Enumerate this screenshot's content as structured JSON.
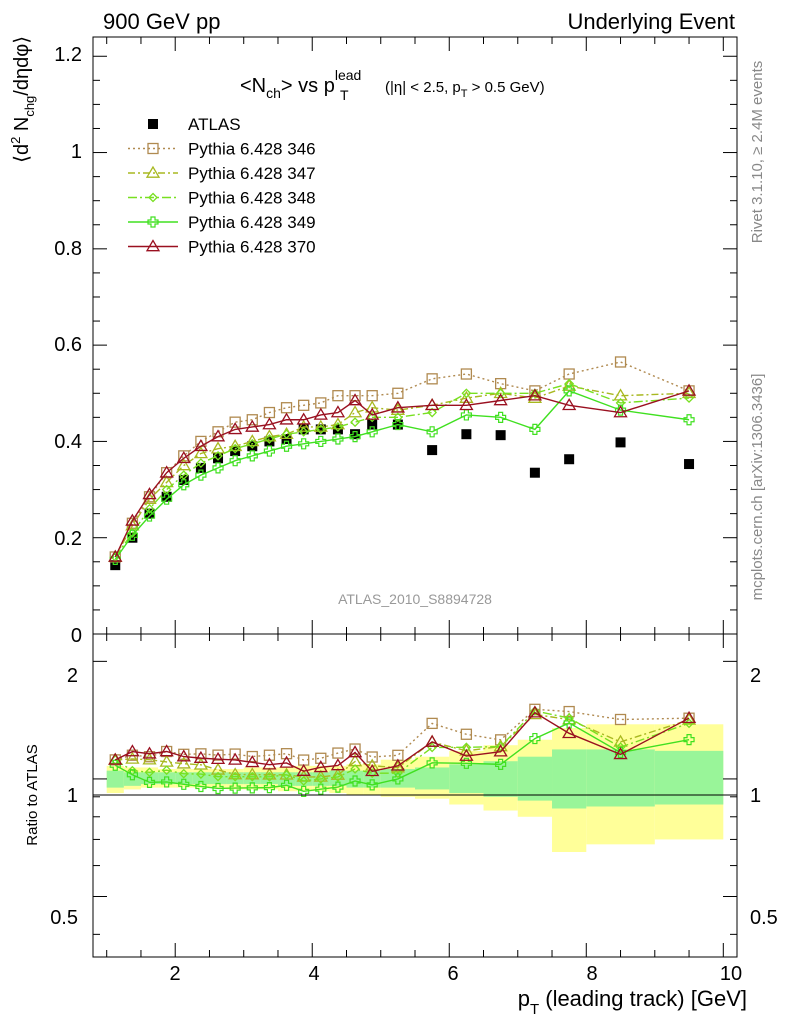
{
  "header": {
    "left": "900 GeV pp",
    "right": "Underlying Event"
  },
  "side_labels": {
    "rivet": "Rivet 3.1.10, ≥ 2.4M events",
    "mcplots": "mcplots.cern.ch [arXiv:1306.3436]"
  },
  "watermark": "ATLAS_2010_S8894728",
  "chart_data": {
    "type": "scatter",
    "title": "<N_ch> vs p_T^lead (|η| < 2.5, p_T > 0.5 GeV)",
    "title_parts": {
      "n": "<N",
      "ch_sub": "ch",
      "vs": "> vs p",
      "lead_sup": "lead",
      "t_sub": "T",
      "cut_a": "(|η| < 2.5, p",
      "cut_t_sub": "T",
      "cut_b": " > 0.5 GeV)"
    },
    "ylabel": "⟨d² N_chg/dηdφ⟩",
    "ylabel_parts": {
      "a": "⟨d",
      "sup": "2",
      "b": " N",
      "sub": "chg",
      "c": "/dηdφ⟩"
    },
    "xlabel": "p_T (leading track) [GeV]",
    "xlabel_parts": {
      "p": "p",
      "sub": "T",
      "rest": " (leading track) [GeV]"
    },
    "ratio_ylabel": "Ratio to ATLAS",
    "xlim": [
      0.8,
      10.2
    ],
    "ylim": [
      0,
      1.24
    ],
    "ratio_ylim": [
      0.35,
      2.35
    ],
    "x_ticks": [
      "2",
      "4",
      "6",
      "8",
      "10"
    ],
    "y_ticks": [
      "0",
      "0.2",
      "0.4",
      "0.6",
      "0.8",
      "1",
      "1.2"
    ],
    "ratio_ticks": [
      "0.5",
      "1",
      "2"
    ],
    "x": [
      1.125,
      1.375,
      1.625,
      1.875,
      2.125,
      2.375,
      2.625,
      2.875,
      3.125,
      3.375,
      3.625,
      3.875,
      4.125,
      4.375,
      4.625,
      4.875,
      5.25,
      5.75,
      6.25,
      6.75,
      7.25,
      7.75,
      8.5,
      9.5
    ],
    "series": [
      {
        "name": "ATLAS",
        "style": "data",
        "values": [
          0.143,
          0.2,
          0.25,
          0.285,
          0.32,
          0.345,
          0.365,
          0.38,
          0.39,
          0.4,
          0.405,
          0.425,
          0.425,
          0.425,
          0.415,
          0.435,
          0.435,
          0.382,
          0.415,
          0.413,
          0.335,
          0.363,
          0.398,
          0.353
        ],
        "color": "#000000"
      },
      {
        "name": "Pythia 6.428 346",
        "style": "dotted-square",
        "values": [
          0.16,
          0.23,
          0.285,
          0.335,
          0.37,
          0.4,
          0.42,
          0.44,
          0.445,
          0.46,
          0.47,
          0.475,
          0.48,
          0.495,
          0.495,
          0.495,
          0.5,
          0.53,
          0.54,
          0.52,
          0.505,
          0.54,
          0.565,
          0.505
        ],
        "color": "#b08a50"
      },
      {
        "name": "Pythia 6.428 347",
        "style": "dashdot-triangle",
        "values": [
          0.16,
          0.225,
          0.28,
          0.315,
          0.35,
          0.375,
          0.385,
          0.39,
          0.4,
          0.41,
          0.415,
          0.43,
          0.43,
          0.435,
          0.46,
          0.47,
          0.465,
          0.475,
          0.49,
          0.5,
          0.49,
          0.515,
          0.495,
          0.5
        ],
        "color": "#a8b820"
      },
      {
        "name": "Pythia 6.428 348",
        "style": "dashdot-diamond",
        "values": [
          0.16,
          0.21,
          0.26,
          0.3,
          0.33,
          0.355,
          0.37,
          0.385,
          0.395,
          0.405,
          0.415,
          0.42,
          0.425,
          0.43,
          0.44,
          0.45,
          0.45,
          0.46,
          0.5,
          0.5,
          0.5,
          0.52,
          0.48,
          0.49
        ],
        "color": "#78e020"
      },
      {
        "name": "Pythia 6.428 349",
        "style": "solid-cross",
        "values": [
          0.155,
          0.205,
          0.245,
          0.28,
          0.31,
          0.33,
          0.345,
          0.36,
          0.37,
          0.38,
          0.39,
          0.395,
          0.4,
          0.405,
          0.41,
          0.42,
          0.435,
          0.42,
          0.455,
          0.45,
          0.425,
          0.505,
          0.465,
          0.445
        ],
        "color": "#40e020"
      },
      {
        "name": "Pythia 6.428 370",
        "style": "solid-triangle",
        "values": [
          0.16,
          0.235,
          0.29,
          0.335,
          0.365,
          0.39,
          0.41,
          0.425,
          0.43,
          0.435,
          0.445,
          0.445,
          0.455,
          0.46,
          0.485,
          0.455,
          0.47,
          0.475,
          0.475,
          0.485,
          0.495,
          0.475,
          0.46,
          0.505
        ],
        "color": "#9a1020"
      }
    ],
    "ratio_bands": {
      "x_edges": [
        1.0,
        1.25,
        1.5,
        1.75,
        2.0,
        2.25,
        2.5,
        2.75,
        3.0,
        3.25,
        3.5,
        3.75,
        4.0,
        4.25,
        4.5,
        4.75,
        5.0,
        5.5,
        6.0,
        6.5,
        7.0,
        7.5,
        8.0,
        9.0,
        10.0
      ],
      "yellow_lo": [
        0.92,
        0.94,
        0.95,
        0.95,
        0.95,
        0.95,
        0.95,
        0.94,
        0.94,
        0.94,
        0.93,
        0.93,
        0.93,
        0.92,
        0.91,
        0.91,
        0.9,
        0.89,
        0.86,
        0.83,
        0.8,
        0.65,
        0.68,
        0.7,
        0.73
      ],
      "yellow_hi": [
        1.08,
        1.07,
        1.07,
        1.06,
        1.06,
        1.06,
        1.06,
        1.06,
        1.07,
        1.07,
        1.07,
        1.08,
        1.08,
        1.08,
        1.09,
        1.09,
        1.12,
        1.14,
        1.18,
        1.22,
        1.26,
        1.35,
        1.38,
        1.38,
        1.38
      ],
      "green_lo": [
        0.95,
        0.96,
        0.97,
        0.97,
        0.97,
        0.97,
        0.97,
        0.97,
        0.97,
        0.97,
        0.96,
        0.96,
        0.96,
        0.96,
        0.95,
        0.95,
        0.95,
        0.94,
        0.92,
        0.9,
        0.88,
        0.84,
        0.85,
        0.86,
        0.87
      ],
      "green_hi": [
        1.05,
        1.04,
        1.04,
        1.04,
        1.04,
        1.04,
        1.04,
        1.04,
        1.04,
        1.04,
        1.04,
        1.04,
        1.04,
        1.05,
        1.05,
        1.05,
        1.06,
        1.07,
        1.09,
        1.11,
        1.14,
        1.19,
        1.19,
        1.18,
        1.17
      ]
    }
  }
}
